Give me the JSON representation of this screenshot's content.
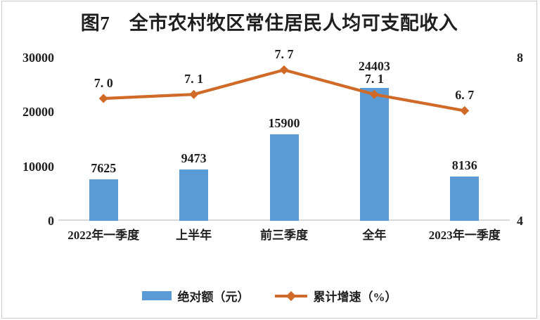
{
  "frame": {
    "border_color": "#cbcbcb",
    "background": "#ffffff"
  },
  "text_color": "#1f1f1f",
  "chart_data": {
    "type": "bar",
    "subtype": "bar-line-combo",
    "title": "图7　全市农村牧区常住居民人均可支配收入",
    "categories": [
      "2022年一季度",
      "上半年",
      "前三季度",
      "全年",
      "2023年一季度"
    ],
    "series": [
      {
        "name": "绝对额（元）",
        "type": "bar",
        "axis": "left",
        "color": "#5B9BD5",
        "values": [
          7625,
          9473,
          15900,
          24403,
          8136
        ]
      },
      {
        "name": "累计增速（%）",
        "type": "line",
        "axis": "right",
        "color": "#D06A28",
        "marker": "diamond",
        "values": [
          7.0,
          7.1,
          7.7,
          7.1,
          6.7
        ]
      }
    ],
    "left_axis": {
      "min": 0,
      "max": 30000,
      "ticks": [
        0,
        10000,
        20000,
        30000
      ]
    },
    "right_axis": {
      "min": 4,
      "max": 8,
      "ticks": [
        4,
        8
      ]
    },
    "grid": false,
    "value_labels": true,
    "legend_position": "bottom"
  },
  "legend": {
    "items": [
      {
        "label": "绝对额（元）",
        "swatch": "bar",
        "color": "#5B9BD5"
      },
      {
        "label": "累计增速（%）",
        "swatch": "line-diamond",
        "color": "#D06A28"
      }
    ]
  }
}
